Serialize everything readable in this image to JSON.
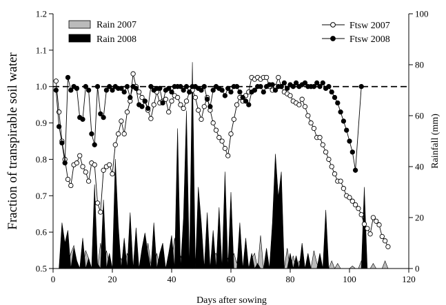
{
  "chart_data": {
    "type": "line",
    "xlabel": "Days after sowing",
    "ylabel": "Fraction of transpirable soil water",
    "y2label": "Rainfall (mm)",
    "xlim": [
      0,
      120
    ],
    "ylim": [
      0.5,
      1.2
    ],
    "y2lim": [
      0,
      100
    ],
    "x_ticks": [
      "0",
      "20",
      "40",
      "60",
      "80",
      "100",
      "120"
    ],
    "y_ticks": [
      "0.5",
      "0.6",
      "0.7",
      "0.8",
      "0.9",
      "1.0",
      "1.1",
      "1.2"
    ],
    "y2_ticks": [
      "0",
      "20",
      "40",
      "60",
      "80",
      "100"
    ],
    "reference_line": 1.0,
    "legend_rain": [
      {
        "name": "Rain 2007",
        "color": "#bbbbbb"
      },
      {
        "name": "Rain 2008",
        "color": "#000000"
      }
    ],
    "legend_ftsw": [
      {
        "name": "Ftsw 2007",
        "marker": "open"
      },
      {
        "name": "Ftsw 2008",
        "marker": "filled"
      }
    ],
    "series": [
      {
        "name": "Rain 2007",
        "type": "area",
        "axis": "right",
        "color": "#bbbbbb",
        "x": [
          0,
          2,
          3,
          4,
          5,
          6,
          7,
          8,
          9,
          10,
          11,
          12,
          13,
          14,
          15,
          16,
          17,
          18,
          19,
          20,
          21,
          22,
          23,
          24,
          25,
          26,
          27,
          28,
          29,
          30,
          31,
          32,
          33,
          34,
          35,
          36,
          37,
          38,
          39,
          40,
          41,
          42,
          43,
          44,
          45,
          46,
          47,
          48,
          49,
          50,
          51,
          52,
          53,
          54,
          55,
          56,
          57,
          58,
          59,
          60,
          61,
          62,
          63,
          64,
          65,
          66,
          67,
          68,
          69,
          70,
          71,
          72,
          73,
          74,
          75,
          76,
          77,
          78,
          79,
          80,
          81,
          82,
          83,
          84,
          85,
          86,
          87,
          88,
          89,
          90,
          91,
          92,
          93,
          94,
          95,
          96,
          97,
          98,
          99,
          100,
          101,
          102,
          103,
          104,
          105,
          106,
          107,
          108,
          109,
          110,
          111,
          112,
          113
        ],
        "values": [
          0,
          0,
          5,
          0,
          2,
          6,
          9,
          3,
          0,
          0,
          7,
          4,
          0,
          3,
          0,
          10,
          0,
          7,
          2,
          0,
          8,
          1,
          4,
          0,
          6,
          2,
          0,
          5,
          0,
          3,
          0,
          10,
          2,
          0,
          6,
          0,
          4,
          0,
          1,
          3,
          12,
          0,
          5,
          0,
          8,
          2,
          0,
          4,
          0,
          7,
          1,
          10,
          0,
          5,
          6,
          0,
          2,
          0,
          4,
          0,
          6,
          2,
          11,
          0,
          9,
          0,
          4,
          6,
          0,
          13,
          0,
          4,
          0,
          2,
          0,
          0,
          0,
          0,
          8,
          0,
          5,
          0,
          3,
          0,
          0,
          1,
          0,
          7,
          2,
          0,
          0,
          4,
          0,
          3,
          0,
          2,
          0,
          0,
          0,
          0,
          1,
          0,
          0,
          3,
          0,
          0,
          0,
          2,
          0,
          0,
          0,
          3,
          0
        ]
      },
      {
        "name": "Rain 2008",
        "type": "area",
        "axis": "right",
        "color": "#000000",
        "x": [
          0,
          1,
          2,
          3,
          4,
          5,
          6,
          7,
          8,
          9,
          10,
          11,
          12,
          13,
          14,
          15,
          16,
          17,
          18,
          19,
          20,
          21,
          22,
          23,
          24,
          25,
          26,
          27,
          28,
          29,
          30,
          31,
          32,
          33,
          34,
          35,
          36,
          37,
          38,
          39,
          40,
          41,
          42,
          43,
          44,
          45,
          46,
          47,
          48,
          49,
          50,
          51,
          52,
          53,
          54,
          55,
          56,
          57,
          58,
          59,
          60,
          61,
          62,
          63,
          64,
          65,
          66,
          67,
          68,
          69,
          70,
          71,
          72,
          73,
          74,
          75,
          76,
          77,
          78,
          79,
          80,
          81,
          82,
          83,
          84,
          85,
          86,
          87,
          88,
          89,
          90,
          91,
          92,
          93,
          94,
          95,
          96,
          97,
          98,
          99,
          100,
          101,
          102,
          103,
          104,
          105,
          106,
          107,
          108,
          109,
          110,
          111,
          112,
          113
        ],
        "values": [
          0,
          0,
          0,
          18,
          10,
          15,
          0,
          8,
          3,
          0,
          12,
          0,
          4,
          0,
          33,
          2,
          0,
          27,
          0,
          6,
          0,
          43,
          17,
          0,
          12,
          0,
          22,
          0,
          16,
          0,
          8,
          14,
          6,
          0,
          18,
          0,
          6,
          10,
          0,
          6,
          13,
          0,
          55,
          0,
          20,
          62,
          0,
          81,
          0,
          32,
          18,
          0,
          22,
          0,
          15,
          0,
          24,
          0,
          38,
          0,
          30,
          0,
          0,
          18,
          0,
          12,
          0,
          6,
          0,
          2,
          0,
          0,
          8,
          0,
          18,
          45,
          28,
          38,
          0,
          0,
          6,
          0,
          5,
          0,
          10,
          0,
          6,
          0,
          0,
          0,
          6,
          0,
          23,
          0,
          0,
          0,
          0,
          0,
          0,
          0,
          0,
          0,
          0,
          0,
          0,
          32,
          0,
          0,
          0,
          0,
          0,
          0,
          0,
          0
        ]
      },
      {
        "name": "Ftsw 2007",
        "type": "line",
        "axis": "left",
        "marker": "open",
        "x": [
          1,
          2,
          3,
          4,
          5,
          6,
          7,
          8,
          9,
          10,
          11,
          12,
          13,
          14,
          15,
          16,
          17,
          18,
          19,
          20,
          21,
          22,
          23,
          24,
          25,
          26,
          27,
          28,
          29,
          30,
          31,
          32,
          33,
          34,
          35,
          36,
          37,
          38,
          39,
          40,
          41,
          42,
          43,
          44,
          45,
          46,
          47,
          48,
          49,
          50,
          51,
          52,
          53,
          54,
          55,
          56,
          57,
          58,
          59,
          60,
          61,
          62,
          63,
          64,
          65,
          66,
          67,
          68,
          69,
          70,
          71,
          72,
          73,
          74,
          75,
          76,
          77,
          78,
          79,
          80,
          81,
          82,
          83,
          84,
          85,
          86,
          87,
          88,
          89,
          90,
          91,
          92,
          93,
          94,
          95,
          96,
          97,
          98,
          99,
          100,
          101,
          102,
          103,
          104,
          105,
          106,
          107,
          108,
          109,
          110,
          111,
          112,
          113
        ],
        "values": [
          1.015,
          0.93,
          0.85,
          0.8,
          0.745,
          0.728,
          0.785,
          0.79,
          0.81,
          0.78,
          0.765,
          0.74,
          0.79,
          0.785,
          0.68,
          0.655,
          0.77,
          0.78,
          0.785,
          0.76,
          0.84,
          0.87,
          0.905,
          0.87,
          0.93,
          0.96,
          1.035,
          1.0,
          0.985,
          0.97,
          0.96,
          0.935,
          0.912,
          0.95,
          0.985,
          0.955,
          0.96,
          0.965,
          0.93,
          0.96,
          0.975,
          0.97,
          0.95,
          0.94,
          0.96,
          0.985,
          0.99,
          0.97,
          0.935,
          0.91,
          0.945,
          0.97,
          0.935,
          0.9,
          0.88,
          0.86,
          0.85,
          0.83,
          0.81,
          0.87,
          0.91,
          0.95,
          0.97,
          0.96,
          0.975,
          0.985,
          1.025,
          1.02,
          1.025,
          1.02,
          1.025,
          1.025,
          1.0,
          0.99,
          1.0,
          1.025,
          1.0,
          0.985,
          0.98,
          0.975,
          0.96,
          0.955,
          0.95,
          0.965,
          0.945,
          0.92,
          0.9,
          0.885,
          0.86,
          0.86,
          0.84,
          0.82,
          0.8,
          0.78,
          0.76,
          0.74,
          0.74,
          0.72,
          0.7,
          0.695,
          0.685,
          0.675,
          0.665,
          0.648,
          0.622,
          0.61,
          0.595,
          0.64,
          0.63,
          0.62,
          0.588,
          0.576,
          0.56
        ]
      },
      {
        "name": "Ftsw 2008",
        "type": "line",
        "axis": "left",
        "marker": "filled",
        "x": [
          1,
          2,
          3,
          4,
          5,
          6,
          7,
          8,
          9,
          10,
          11,
          12,
          13,
          14,
          15,
          16,
          17,
          18,
          19,
          20,
          21,
          22,
          23,
          24,
          25,
          26,
          27,
          28,
          29,
          30,
          31,
          32,
          33,
          34,
          35,
          36,
          37,
          38,
          39,
          40,
          41,
          42,
          43,
          44,
          45,
          46,
          47,
          48,
          49,
          50,
          51,
          52,
          53,
          54,
          55,
          56,
          57,
          58,
          59,
          60,
          61,
          62,
          63,
          64,
          65,
          66,
          67,
          68,
          69,
          70,
          71,
          72,
          73,
          74,
          75,
          76,
          77,
          78,
          79,
          80,
          81,
          82,
          83,
          84,
          85,
          86,
          87,
          88,
          89,
          90,
          91,
          92,
          93,
          94,
          95,
          96,
          97,
          98,
          99,
          100,
          101,
          102,
          104
        ],
        "values": [
          0.99,
          0.89,
          0.845,
          0.79,
          1.025,
          0.99,
          1.0,
          0.995,
          0.915,
          0.91,
          1.0,
          0.99,
          0.87,
          0.84,
          1.0,
          0.925,
          0.915,
          0.99,
          1.0,
          0.99,
          1.0,
          0.995,
          0.995,
          0.985,
          1.0,
          0.97,
          1.0,
          0.995,
          0.95,
          0.945,
          0.96,
          0.94,
          1.0,
          0.99,
          0.995,
          0.995,
          0.955,
          0.99,
          0.995,
          0.985,
          1.0,
          1.0,
          1.0,
          0.99,
          1.0,
          0.985,
          1.0,
          1.0,
          0.995,
          0.99,
          1.0,
          0.965,
          0.945,
          0.99,
          1.0,
          0.995,
          0.99,
          0.975,
          0.995,
          0.985,
          1.0,
          1.0,
          0.985,
          0.97,
          0.96,
          0.95,
          0.985,
          0.99,
          1.0,
          1.0,
          0.985,
          1.0,
          1.005,
          1.005,
          0.99,
          1.0,
          1.0,
          1.01,
          0.995,
          1.005,
          1.0,
          1.01,
          1.0,
          1.005,
          1.01,
          1.0,
          1.0,
          1.0,
          1.01,
          1.0,
          1.01,
          0.995,
          1.0,
          0.985,
          0.97,
          0.955,
          0.93,
          0.905,
          0.88,
          0.85,
          0.82,
          0.77,
          1.0
        ]
      }
    ]
  }
}
